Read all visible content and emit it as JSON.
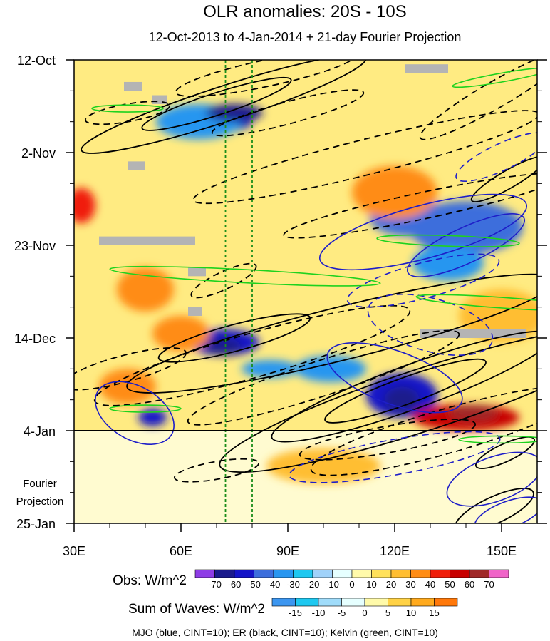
{
  "chart_data": {
    "type": "heatmap",
    "title": "OLR anomalies: 20S - 10S",
    "subtitle": "12-Oct-2013 to 4-Jan-2014 + 21-day Fourier Projection",
    "x_axis": {
      "range": [
        30,
        160
      ],
      "ticks": [
        30,
        60,
        90,
        120,
        150
      ],
      "tick_labels": [
        "30E",
        "60E",
        "90E",
        "120E",
        "150E"
      ]
    },
    "y_axis": {
      "range_days": [
        0,
        105
      ],
      "ticks": [
        0,
        21,
        42,
        63,
        84,
        105
      ],
      "tick_labels": [
        "12-Oct",
        "2-Nov",
        "23-Nov",
        "14-Dec",
        "4-Jan",
        "25-Jan"
      ],
      "minor_every_days": 7
    },
    "forecast_start_day": 84,
    "forecast_label_line1": "Fourier",
    "forecast_label_line2": "Projection",
    "reference_lines_lon": [
      72.5,
      80
    ],
    "obs_colorbar": {
      "label": "Obs: W/m^2",
      "levels": [
        "-70",
        "-60",
        "-50",
        "-40",
        "-30",
        "-20",
        "-10",
        "0",
        "10",
        "20",
        "30",
        "40",
        "50",
        "60",
        "70"
      ],
      "colors": [
        "#8e3ce6",
        "#1a1a8c",
        "#1414c8",
        "#3c6edc",
        "#2896f0",
        "#1ec8f0",
        "#a0d2fa",
        "#e6ffff",
        "#fffaaa",
        "#ffe15a",
        "#ffbe32",
        "#ff8c14",
        "#f01e0a",
        "#c80000",
        "#a02828",
        "#f064c8"
      ]
    },
    "waves_colorbar": {
      "label": "Sum of Waves: W/m^2",
      "levels": [
        "-15",
        "-10",
        "-5",
        "0",
        "5",
        "10",
        "15"
      ],
      "colors": [
        "#3c96f0",
        "#1ec8f0",
        "#a0dcfa",
        "#e6ffff",
        "#fffaaa",
        "#ffd246",
        "#ffaa1e",
        "#ff780a"
      ]
    },
    "contour_legend": "MJO (blue, CINT=10); ER (black, CINT=10); Kelvin (green, CINT=10)",
    "contours": {
      "ER_black": [
        {
          "lon": 72,
          "day": 10,
          "rlon": 42,
          "rday": 4,
          "angle": -18,
          "dash": false
        },
        {
          "lon": 70,
          "day": 10,
          "rlon": 22,
          "rday": 2.5,
          "angle": -18,
          "dash": false
        },
        {
          "lon": 84,
          "day": 3,
          "rlon": 26,
          "rday": 3,
          "angle": -12,
          "dash": true
        },
        {
          "lon": 45,
          "day": 12,
          "rlon": 12,
          "rday": 2,
          "angle": -10,
          "dash": true
        },
        {
          "lon": 90,
          "day": 12,
          "rlon": 22,
          "rday": 2.5,
          "angle": -15,
          "dash": true
        },
        {
          "lon": 112,
          "day": 22,
          "rlon": 50,
          "rday": 4,
          "angle": -14,
          "dash": true
        },
        {
          "lon": 128,
          "day": 33,
          "rlon": 40,
          "rday": 3,
          "angle": -12,
          "dash": true
        },
        {
          "lon": 148,
          "day": 8,
          "rlon": 24,
          "rday": 3,
          "angle": -30,
          "dash": true
        },
        {
          "lon": 152,
          "day": 27,
          "rlon": 12,
          "rday": 2,
          "angle": -30,
          "dash": false
        },
        {
          "lon": 105,
          "day": 62,
          "rlon": 62,
          "rday": 6,
          "angle": -14,
          "dash": false
        },
        {
          "lon": 75,
          "day": 63,
          "rlon": 22,
          "rday": 3,
          "angle": -15,
          "dash": false
        },
        {
          "lon": 80,
          "day": 67,
          "rlon": 46,
          "rday": 5,
          "angle": -16,
          "dash": true
        },
        {
          "lon": 125,
          "day": 74,
          "rlon": 42,
          "rday": 5,
          "angle": -20,
          "dash": false
        },
        {
          "lon": 123,
          "day": 75,
          "rlon": 24,
          "rday": 3,
          "angle": -20,
          "dash": false
        },
        {
          "lon": 128,
          "day": 77,
          "rlon": 60,
          "rday": 7,
          "angle": -18,
          "dash": false
        },
        {
          "lon": 100,
          "day": 72,
          "rlon": 40,
          "rday": 4,
          "angle": -18,
          "dash": true
        },
        {
          "lon": 135,
          "day": 84,
          "rlon": 40,
          "rday": 5,
          "angle": -16,
          "dash": true
        },
        {
          "lon": 118,
          "day": 86,
          "rlon": 25,
          "rday": 3,
          "angle": -10,
          "dash": true
        },
        {
          "lon": 70,
          "day": 93,
          "rlon": 12,
          "rday": 2,
          "angle": -10,
          "dash": true
        },
        {
          "lon": 151,
          "day": 89,
          "rlon": 9,
          "rday": 2,
          "angle": -25,
          "dash": false
        },
        {
          "lon": 148,
          "day": 102,
          "rlon": 12,
          "rday": 3,
          "angle": -25,
          "dash": false
        },
        {
          "lon": 44,
          "day": 70,
          "rlon": 18,
          "rday": 3,
          "angle": -15,
          "dash": true
        },
        {
          "lon": 72,
          "day": 50,
          "rlon": 10,
          "rday": 2,
          "angle": -25,
          "dash": true
        }
      ],
      "MJO_blue": [
        {
          "lon": 128,
          "day": 39,
          "rlon": 30,
          "rday": 6,
          "angle": -15,
          "dash": false
        },
        {
          "lon": 140,
          "day": 42,
          "rlon": 18,
          "rday": 4,
          "angle": -25,
          "dash": false
        },
        {
          "lon": 150,
          "day": 22,
          "rlon": 14,
          "rday": 3,
          "angle": -25,
          "dash": true
        },
        {
          "lon": 128,
          "day": 50,
          "rlon": 22,
          "rday": 4,
          "angle": -15,
          "dash": true
        },
        {
          "lon": 130,
          "day": 60,
          "rlon": 18,
          "rday": 6,
          "angle": 15,
          "dash": true
        },
        {
          "lon": 120,
          "day": 72,
          "rlon": 20,
          "rday": 6,
          "angle": 20,
          "dash": false
        },
        {
          "lon": 120,
          "day": 90,
          "rlon": 30,
          "rday": 4,
          "angle": -10,
          "dash": true
        },
        {
          "lon": 47,
          "day": 80,
          "rlon": 12,
          "rday": 6,
          "angle": 30,
          "dash": false
        },
        {
          "lon": 148,
          "day": 95,
          "rlon": 14,
          "rday": 5,
          "angle": -20,
          "dash": false
        },
        {
          "lon": 152,
          "day": 103,
          "rlon": 10,
          "rday": 3,
          "angle": -20,
          "dash": false
        }
      ],
      "Kelvin_green": [
        {
          "lon": 78,
          "day": 49,
          "rlon": 38,
          "rday": 1.5,
          "angle": 3,
          "dash": false
        },
        {
          "lon": 150,
          "day": 55,
          "rlon": 24,
          "rday": 1.2,
          "angle": 4,
          "dash": false
        },
        {
          "lon": 135,
          "day": 41,
          "rlon": 20,
          "rday": 1.2,
          "angle": 2,
          "dash": false
        },
        {
          "lon": 150,
          "day": 4,
          "rlon": 14,
          "rday": 1,
          "angle": -10,
          "dash": false
        },
        {
          "lon": 45,
          "day": 11,
          "rlon": 10,
          "rday": 0.8,
          "angle": 0,
          "dash": false
        },
        {
          "lon": 50,
          "day": 79,
          "rlon": 10,
          "rday": 0.8,
          "angle": 0,
          "dash": false
        },
        {
          "lon": 150,
          "day": 86,
          "rlon": 12,
          "rday": 0.8,
          "angle": 0,
          "dash": false
        }
      ]
    },
    "missing_data_boxes": [
      {
        "lon": [
          44,
          49
        ],
        "day": [
          5,
          7
        ]
      },
      {
        "lon": [
          52,
          56
        ],
        "day": [
          8,
          10
        ]
      },
      {
        "lon": [
          45,
          50
        ],
        "day": [
          23,
          25
        ]
      },
      {
        "lon": [
          37,
          64
        ],
        "day": [
          40,
          42
        ]
      },
      {
        "lon": [
          62,
          67
        ],
        "day": [
          47,
          49
        ]
      },
      {
        "lon": [
          62,
          66
        ],
        "day": [
          56,
          58
        ]
      },
      {
        "lon": [
          127,
          157
        ],
        "day": [
          61,
          63
        ]
      },
      {
        "lon": [
          123,
          135
        ],
        "day": [
          1,
          3
        ]
      }
    ],
    "obs_features": [
      {
        "lon": 70,
        "day": 14,
        "rlon": 10,
        "rday": 2.5,
        "value": -55
      },
      {
        "lon": 65,
        "day": 14,
        "rlon": 12,
        "rday": 4,
        "value": -35
      },
      {
        "lon": 75,
        "day": 12,
        "rlon": 8,
        "rday": 2,
        "value": -70
      },
      {
        "lon": 32,
        "day": 33,
        "rlon": 4,
        "rday": 4,
        "value": 45
      },
      {
        "lon": 140,
        "day": 38,
        "rlon": 16,
        "rday": 6,
        "value": -45
      },
      {
        "lon": 125,
        "day": 36,
        "rlon": 12,
        "rday": 4,
        "value": -50
      },
      {
        "lon": 135,
        "day": 46,
        "rlon": 10,
        "rday": 4,
        "value": -40
      },
      {
        "lon": 72,
        "day": 64,
        "rlon": 10,
        "rday": 3,
        "value": -55
      },
      {
        "lon": 72,
        "day": 65,
        "rlon": 5,
        "rday": 2,
        "value": -70
      },
      {
        "lon": 85,
        "day": 70,
        "rlon": 8,
        "rday": 2,
        "value": -40
      },
      {
        "lon": 102,
        "day": 70,
        "rlon": 10,
        "rday": 3,
        "value": -35
      },
      {
        "lon": 122,
        "day": 76,
        "rlon": 10,
        "rday": 5,
        "value": -55
      },
      {
        "lon": 122,
        "day": 77,
        "rlon": 5,
        "rday": 3,
        "value": -70
      },
      {
        "lon": 52,
        "day": 81,
        "rlon": 4,
        "rday": 2,
        "value": -60
      },
      {
        "lon": 140,
        "day": 81,
        "rlon": 15,
        "rday": 3,
        "value": 50
      },
      {
        "lon": 142,
        "day": 80,
        "rlon": 7,
        "rday": 2,
        "value": 65
      },
      {
        "lon": 60,
        "day": 62,
        "rlon": 8,
        "rday": 4,
        "value": 35
      },
      {
        "lon": 50,
        "day": 52,
        "rlon": 8,
        "rday": 5,
        "value": 30
      },
      {
        "lon": 45,
        "day": 74,
        "rlon": 8,
        "rday": 4,
        "value": 30
      },
      {
        "lon": 100,
        "day": 92,
        "rlon": 16,
        "rday": 4,
        "value": 25
      },
      {
        "lon": 120,
        "day": 30,
        "rlon": 12,
        "rday": 6,
        "value": 30
      },
      {
        "lon": 150,
        "day": 58,
        "rlon": 12,
        "rday": 6,
        "value": 25
      }
    ]
  }
}
